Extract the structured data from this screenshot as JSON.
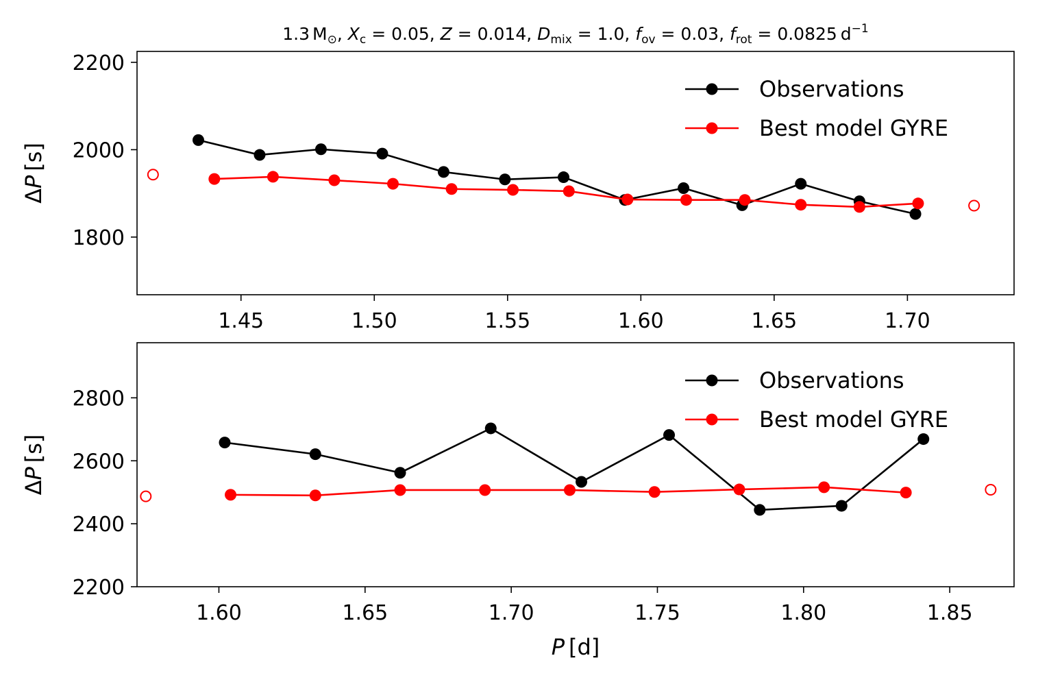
{
  "chart_data": [
    {
      "type": "line",
      "title_parts": {
        "mass": "1.3",
        "mass_unit": "M",
        "xc_label": "X",
        "xc_sub": "c",
        "xc_value": "0.05",
        "z_label": "Z",
        "z_value": "0.014",
        "dmix_label": "D",
        "dmix_sub": "mix",
        "dmix_value": "1.0",
        "fov_label": "f",
        "fov_sub": "ov",
        "fov_value": "0.03",
        "frot_label": "f",
        "frot_sub": "rot",
        "frot_value": "0.0825",
        "frot_unit": "d",
        "frot_exp": "−1"
      },
      "xlabel": "",
      "ylabel": "ΔP [s]",
      "xlim": [
        1.411,
        1.74
      ],
      "ylim": [
        1668,
        2225
      ],
      "xticks": [
        1.45,
        1.5,
        1.55,
        1.6,
        1.65,
        1.7
      ],
      "xtick_labels": [
        "1.45",
        "1.50",
        "1.55",
        "1.60",
        "1.65",
        "1.70"
      ],
      "yticks": [
        1800,
        2000,
        2200
      ],
      "ytick_labels": [
        "1800",
        "2000",
        "2200"
      ],
      "legend_position": "top-right",
      "series": [
        {
          "name": "Observations",
          "color": "#000000",
          "x": [
            1.434,
            1.457,
            1.48,
            1.503,
            1.526,
            1.549,
            1.571,
            1.594,
            1.616,
            1.638,
            1.66,
            1.682,
            1.703
          ],
          "y": [
            2022,
            1988,
            2001,
            1991,
            1949,
            1932,
            1937,
            1885,
            1912,
            1873,
            1922,
            1882,
            1853
          ]
        },
        {
          "name": "Best model GYRE",
          "color": "#ff0000",
          "x": [
            1.44,
            1.462,
            1.485,
            1.507,
            1.529,
            1.552,
            1.573,
            1.595,
            1.617,
            1.639,
            1.66,
            1.682,
            1.704
          ],
          "y": [
            1933,
            1938,
            1930,
            1922,
            1910,
            1908,
            1905,
            1886,
            1885,
            1885,
            1874,
            1869,
            1877
          ],
          "open_points": {
            "x": [
              1.417,
              1.725
            ],
            "y": [
              1943,
              1872
            ]
          }
        }
      ]
    },
    {
      "type": "line",
      "xlabel_var": "P",
      "xlabel_unit": "[d]",
      "ylabel": "ΔP [s]",
      "xlim": [
        1.572,
        1.872
      ],
      "ylim": [
        2200,
        2975
      ],
      "xticks": [
        1.6,
        1.65,
        1.7,
        1.75,
        1.8,
        1.85
      ],
      "xtick_labels": [
        "1.60",
        "1.65",
        "1.70",
        "1.75",
        "1.80",
        "1.85"
      ],
      "yticks": [
        2200,
        2400,
        2600,
        2800
      ],
      "ytick_labels": [
        "2200",
        "2400",
        "2600",
        "2800"
      ],
      "legend_position": "top-right",
      "series": [
        {
          "name": "Observations",
          "color": "#000000",
          "x": [
            1.602,
            1.633,
            1.662,
            1.693,
            1.724,
            1.754,
            1.785,
            1.813,
            1.841
          ],
          "y": [
            2658,
            2621,
            2562,
            2703,
            2533,
            2682,
            2444,
            2457,
            2669
          ]
        },
        {
          "name": "Best model GYRE",
          "color": "#ff0000",
          "x": [
            1.604,
            1.633,
            1.662,
            1.691,
            1.72,
            1.749,
            1.778,
            1.807,
            1.835
          ],
          "y": [
            2492,
            2490,
            2507,
            2507,
            2507,
            2501,
            2509,
            2516,
            2499
          ],
          "open_points": {
            "x": [
              1.575,
              1.864
            ],
            "y": [
              2487,
              2508
            ]
          }
        }
      ]
    }
  ]
}
